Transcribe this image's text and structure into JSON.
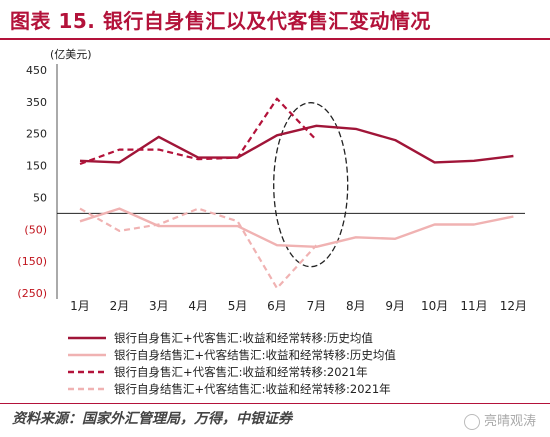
{
  "header": {
    "title": "图表 15. 银行自身售汇以及代客售汇变动情况"
  },
  "footer": {
    "source": "资料来源：国家外汇管理局，万得，中银证券"
  },
  "watermark": {
    "text": "亮晴观涛"
  },
  "colors": {
    "brand": "#b3123a",
    "hist_net": "#a01538",
    "hist_settle": "#f0b2b2",
    "y2021_net": "#b3123a",
    "y2021_settle": "#f0b2b2",
    "axis_text": "#222222",
    "axis_negative": "#c0141d"
  },
  "chart_data": {
    "type": "line",
    "unit_label": "(亿美元)",
    "categories": [
      "1月",
      "2月",
      "3月",
      "4月",
      "5月",
      "6月",
      "7月",
      "8月",
      "9月",
      "10月",
      "11月",
      "12月"
    ],
    "y_ticks": [
      450,
      350,
      250,
      150,
      50,
      -50,
      -150,
      -250
    ],
    "y_tick_labels": [
      "450",
      "350",
      "250",
      "150",
      "50",
      "(50)",
      "(150)",
      "(250)"
    ],
    "ylim": [
      -250,
      450
    ],
    "zero_line": true,
    "legend_position": "bottom",
    "annotation": "dashed ellipse around June–July",
    "series": [
      {
        "name": "银行自身售汇+代客售汇:收益和经常转移:历史均值",
        "style": "solid",
        "color": "#a01538",
        "values": [
          165,
          160,
          240,
          175,
          175,
          245,
          275,
          265,
          230,
          160,
          165,
          180
        ]
      },
      {
        "name": "银行自身结售汇+代客结售汇:收益和经常转移:历史均值",
        "style": "solid",
        "color": "#f0b2b2",
        "values": [
          -25,
          15,
          -40,
          -40,
          -40,
          -100,
          -105,
          -75,
          -80,
          -35,
          -35,
          -10
        ]
      },
      {
        "name": "银行自身售汇+代客售汇:收益和经常转移:2021年",
        "style": "dashed",
        "color": "#b3123a",
        "values": [
          155,
          200,
          200,
          170,
          175,
          360,
          230,
          null,
          null,
          null,
          null,
          null
        ]
      },
      {
        "name": "银行自身结售汇+代客结售汇:收益和经常转移:2021年",
        "style": "dashed",
        "color": "#f0b2b2",
        "values": [
          15,
          -55,
          -35,
          15,
          -25,
          -235,
          -100,
          null,
          null,
          null,
          null,
          null
        ]
      }
    ]
  }
}
